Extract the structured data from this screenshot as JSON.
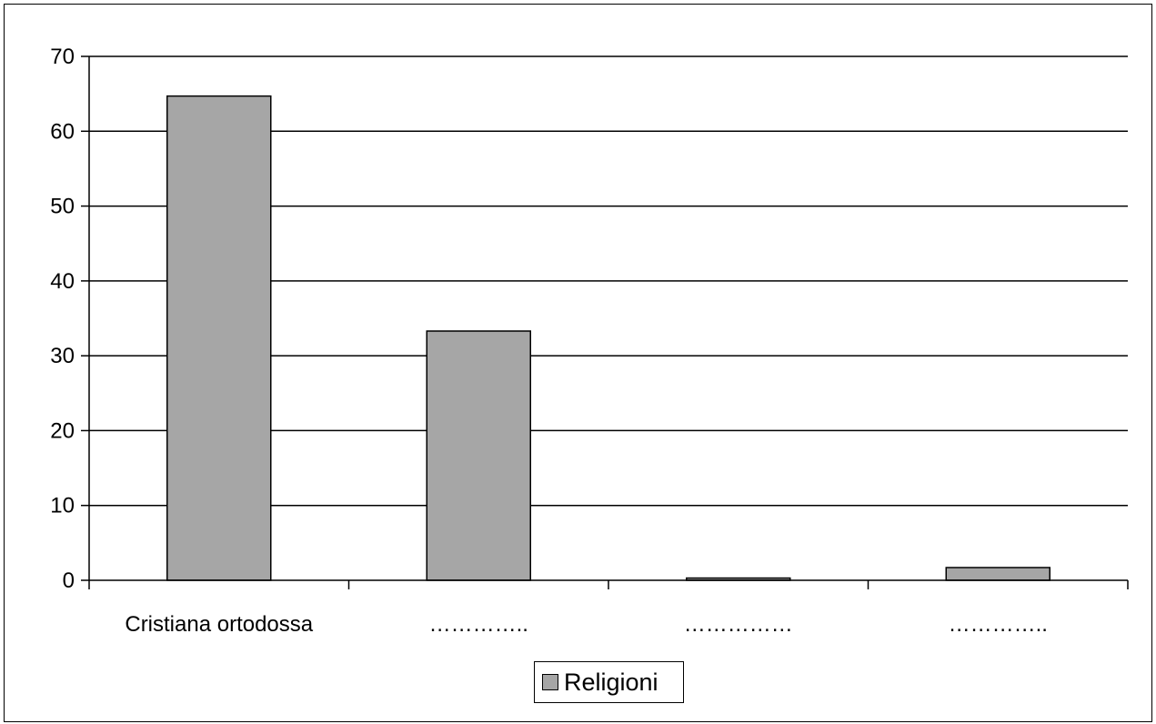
{
  "chart_data": {
    "type": "bar",
    "categories": [
      "Cristiana ortodossa",
      "…………..",
      "……………",
      "………….."
    ],
    "series": [
      {
        "name": "Religioni",
        "values": [
          64.7,
          33.3,
          0.3,
          1.7
        ]
      }
    ],
    "title": "",
    "xlabel": "",
    "ylabel": "",
    "ylim": [
      0,
      70
    ],
    "yticks": [
      0,
      10,
      20,
      30,
      40,
      50,
      60,
      70
    ],
    "grid": true,
    "legend_position": "bottom",
    "bar_color": "#a6a6a6"
  }
}
